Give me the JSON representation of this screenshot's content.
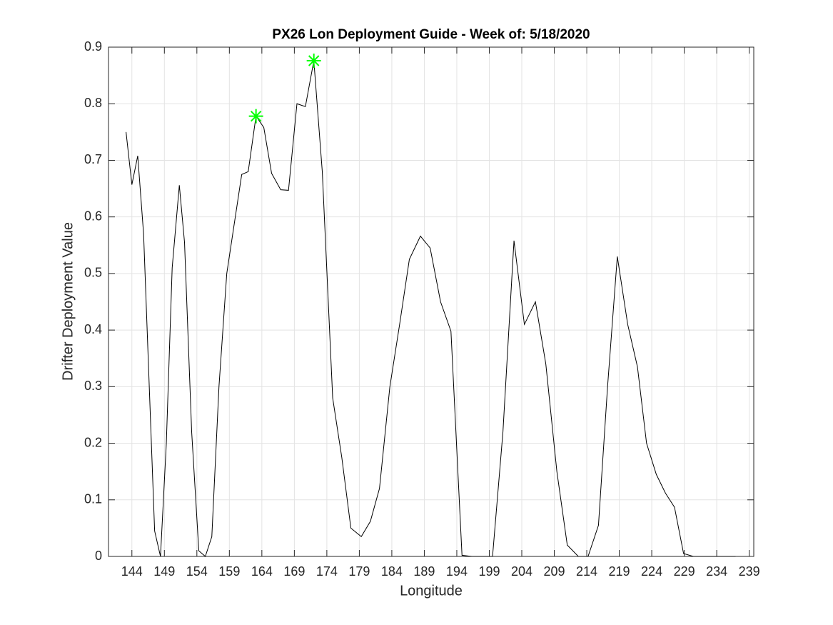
{
  "chart_data": {
    "type": "line",
    "title": "PX26 Lon Deployment Guide - Week of: 5/18/2020",
    "xlabel": "Longitude",
    "ylabel": "Drifter Deployment Value",
    "x": [
      143.1,
      144.0,
      144.9,
      145.8,
      147.5,
      148.4,
      149.3,
      150.2,
      151.3,
      152.1,
      153.2,
      154.3,
      155.3,
      156.3,
      157.4,
      158.6,
      160.9,
      161.9,
      163.1,
      164.3,
      165.5,
      166.9,
      168.1,
      169.4,
      170.7,
      172.0,
      173.3,
      174.9,
      176.3,
      177.7,
      179.3,
      180.7,
      182.1,
      183.7,
      185.2,
      186.7,
      188.4,
      189.9,
      191.5,
      193.1,
      194.8,
      196.3,
      198.0,
      199.5,
      201.1,
      202.8,
      204.4,
      206.1,
      207.7,
      209.4,
      211.0,
      212.7,
      214.2,
      215.8,
      217.2,
      218.7,
      220.3,
      221.8,
      223.2,
      224.7,
      226.1,
      227.5,
      228.9,
      230.4,
      231.9,
      233.6,
      235.2,
      236.9
    ],
    "series": [
      {
        "color": "#000000",
        "values": [
          0.75,
          0.657,
          0.708,
          0.57,
          0.045,
          0,
          0.2,
          0.51,
          0.656,
          0.555,
          0.22,
          0.01,
          0,
          0.035,
          0.3,
          0.5,
          0.675,
          0.68,
          0.778,
          0.758,
          0.677,
          0.648,
          0.647,
          0.8,
          0.795,
          0.876,
          0.68,
          0.28,
          0.175,
          0.05,
          0.035,
          0.062,
          0.12,
          0.3,
          0.41,
          0.525,
          0.566,
          0.545,
          0.45,
          0.398,
          0.002,
          0,
          0,
          0,
          0.22,
          0.558,
          0.41,
          0.45,
          0.34,
          0.15,
          0.02,
          0,
          0,
          0.055,
          0.3,
          0.53,
          0.41,
          0.335,
          0.2,
          0.145,
          0.112,
          0.087,
          0.005,
          0,
          0,
          0,
          0,
          0
        ]
      }
    ],
    "highlights": {
      "color": "#00ff00",
      "x": [
        163.1,
        172.0
      ],
      "values": [
        0.778,
        0.876
      ]
    },
    "xlim": [
      140.4,
      239.7
    ],
    "xticks": [
      144,
      149,
      154,
      159,
      164,
      169,
      174,
      179,
      184,
      189,
      194,
      199,
      204,
      209,
      214,
      219,
      224,
      229,
      234,
      239
    ],
    "ylim": [
      0,
      0.9
    ],
    "yticks": [
      0,
      0.1,
      0.2,
      0.3,
      0.4,
      0.5,
      0.6,
      0.7,
      0.8,
      0.9
    ],
    "grid": true
  }
}
